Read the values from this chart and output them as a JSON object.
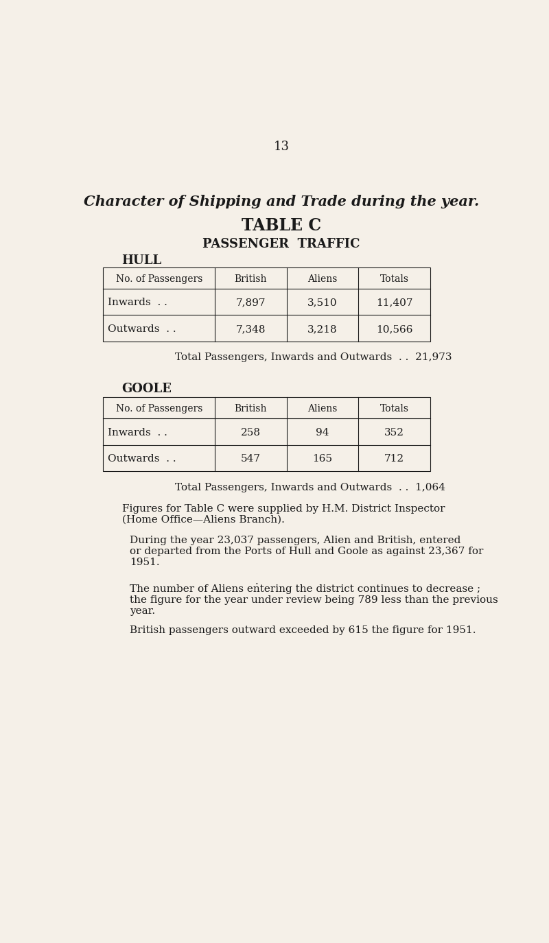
{
  "page_number": "13",
  "bg_color": "#f5f0e8",
  "text_color": "#1a1a1a",
  "title1": "Character of Shipping and Trade during the year.",
  "title2": "TABLE C",
  "title3": "PASSENGER  TRAFFIC",
  "section1": "HULL",
  "section2": "GOOLE",
  "hull_headers": [
    "No. of Passengers",
    "British",
    "Aliens",
    "Totals"
  ],
  "hull_rows": [
    [
      "Inwards  . .",
      "7,897",
      "3,510",
      "11,407"
    ],
    [
      "Outwards  . .",
      "7,348",
      "3,218",
      "10,566"
    ]
  ],
  "hull_total_text": "Total Passengers, Inwards and Outwards  . .  21,973",
  "goole_headers": [
    "No. of Passengers",
    "British",
    "Aliens",
    "Totals"
  ],
  "goole_rows": [
    [
      "Inwards  . .",
      "258",
      "94",
      "352"
    ],
    [
      "Outwards  . .",
      "547",
      "165",
      "712"
    ]
  ],
  "goole_total_text": "Total Passengers, Inwards and Outwards  . .  1,064",
  "para1": "Figures for Table C were supplied by H.M. District Inspector\n(Home Office—Aliens Branch).",
  "para2": "During the year 23,037 passengers, Alien and British, entered\nor departed from the Ports of Hull and Goole as against 23,367 for\n1951.",
  "para3": "The number of Aliens entering the district continues to decrease ;\nthe figure for the year under review being 789 less than the previous\nyear.",
  "para4": "British passengers outward exceeded by 615 the figure for 1951."
}
